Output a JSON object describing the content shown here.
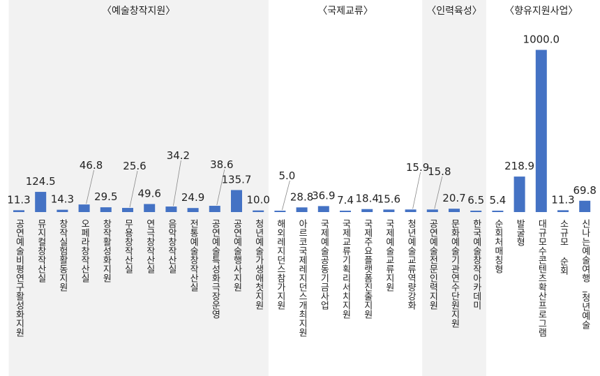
{
  "chart_data": {
    "type": "bar",
    "colors": {
      "bar": "#4472C4",
      "group_bg": "#F2F2F2"
    },
    "groups": [
      {
        "label": "〈예술창작지원〉",
        "start": 0,
        "end": 11,
        "shaded": true
      },
      {
        "label": "〈국제교류〉",
        "start": 12,
        "end": 18,
        "shaded": false
      },
      {
        "label": "〈인력육성〉",
        "start": 19,
        "end": 21,
        "shaded": true
      },
      {
        "label": "〈향유지원사업〉",
        "start": 22,
        "end": 26,
        "shaded": false
      }
    ],
    "categories": [
      "공연예술비평연구활성화지원",
      "뮤지컬창작산실",
      "창작실험활동지원",
      "오페라창작산실",
      "창작활성화지원",
      "무용창작산실",
      "연극창작산실",
      "음악창작산실",
      "전통예술창작산실",
      "공연예술특성화극장운영",
      "공연예술행사지원",
      "청년예술가생애첫지원",
      "해외레지던스참가지원",
      "아르코국제레지던스개최지원",
      "국제예술공동기금사업",
      "국제교류기획리서치지원",
      "국제주요플랫폼진출지원",
      "국제예술교류지원",
      "청년예술교류역량강화",
      "공연예술전문인력지원",
      "문화예술기관연수단원지원",
      "한국예술창작아카데미",
      "순회처매칭형",
      "발굴형",
      "대규모수콘텐츠확산프로그램",
      "소규모 순회",
      "신나는예술여행_청년예술"
    ],
    "values": [
      11.3,
      124.5,
      14.3,
      46.8,
      29.5,
      25.6,
      49.6,
      34.2,
      24.9,
      38.6,
      135.7,
      10.0,
      5.0,
      28.8,
      36.9,
      7.4,
      18.4,
      15.6,
      15.9,
      15.8,
      20.7,
      6.5,
      5.4,
      218.9,
      1000.0,
      11.3,
      69.8
    ],
    "value_labels": [
      "11.3",
      "124.5",
      "14.3",
      "46.8",
      "29.5",
      "25.6",
      "49.6",
      "34.2",
      "24.9",
      "38.6",
      "135.7",
      "10.0",
      "5.0",
      "28.8",
      "36.9",
      "7.4",
      "18.4",
      "15.6",
      "15.9",
      "15.8",
      "20.7",
      "6.5",
      "5.4",
      "218.9",
      "1000.0",
      "11.3",
      "69.8"
    ],
    "xlabel": "",
    "ylabel": "",
    "grid": false,
    "legend": "none"
  }
}
